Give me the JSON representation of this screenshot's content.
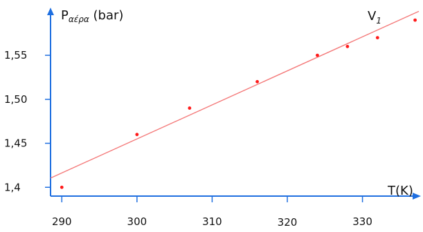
{
  "chart_data": {
    "type": "scatter",
    "ylabel_main": "P",
    "ylabel_sub": "αέρα",
    "ylabel_unit": " (bar)",
    "xlabel": "T(K)",
    "series_label_main": "V",
    "series_label_sub": "1",
    "xlim": [
      288.5,
      337.5
    ],
    "ylim": [
      1.39,
      1.605
    ],
    "x_ticks": [
      {
        "value": 290,
        "label": "290"
      },
      {
        "value": 300,
        "label": "300"
      },
      {
        "value": 310,
        "label": "310"
      },
      {
        "value": 320,
        "label": "320"
      },
      {
        "value": 330,
        "label": "330"
      }
    ],
    "y_ticks": [
      {
        "value": 1.4,
        "label": "1,4"
      },
      {
        "value": 1.45,
        "label": "1,45"
      },
      {
        "value": 1.5,
        "label": "1,50"
      },
      {
        "value": 1.55,
        "label": "1,55"
      }
    ],
    "points": [
      {
        "x": 290,
        "y": 1.4
      },
      {
        "x": 300,
        "y": 1.46
      },
      {
        "x": 307,
        "y": 1.49
      },
      {
        "x": 316,
        "y": 1.52
      },
      {
        "x": 324,
        "y": 1.55
      },
      {
        "x": 328,
        "y": 1.56
      },
      {
        "x": 332,
        "y": 1.57
      },
      {
        "x": 337,
        "y": 1.59
      }
    ],
    "fit_line": {
      "x": [
        288.5,
        337.5
      ],
      "y": [
        1.4105,
        1.6
      ]
    },
    "colors": {
      "points": "#ff1a1a",
      "fit_line": "#f47a7a",
      "axes": "#1f6fe0",
      "text": "#111111"
    },
    "grid": false
  }
}
